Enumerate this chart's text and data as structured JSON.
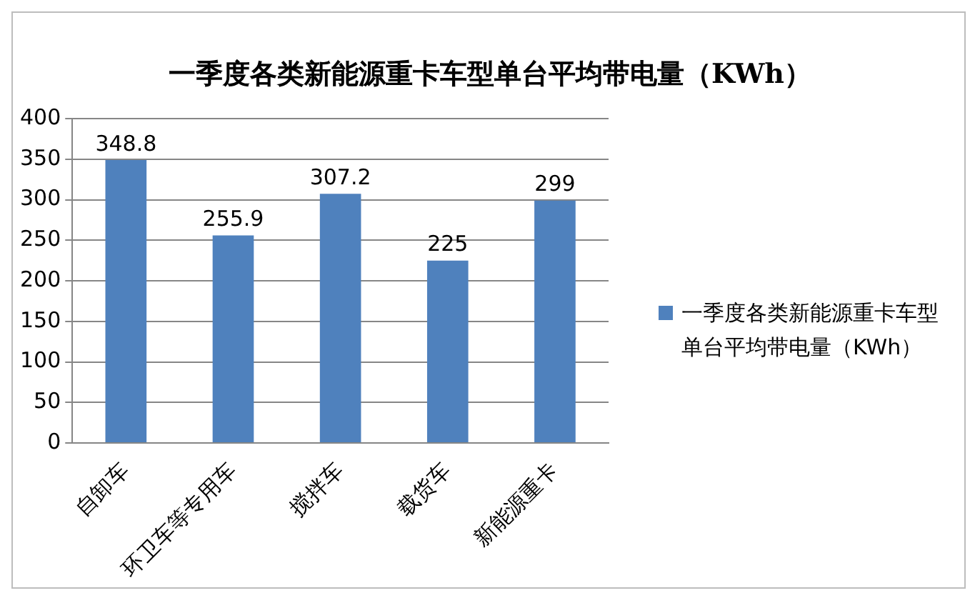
{
  "chart_data": {
    "type": "bar",
    "title": "一季度各类新能源重卡车型单台平均带电量（KWh）",
    "categories": [
      "自卸车",
      "环卫车等专用车",
      "搅拌车",
      "载货车",
      "新能源重卡"
    ],
    "series": [
      {
        "name": "一季度各类新能源重卡车型单台平均带电量（KWh）",
        "color": "#4f81bd",
        "values": [
          348.8,
          255.9,
          307.2,
          225,
          299
        ]
      }
    ],
    "ylim": [
      0,
      400
    ],
    "yticks": [
      0,
      50,
      100,
      150,
      200,
      250,
      300,
      350,
      400
    ],
    "grid": "y",
    "legend": "right",
    "data_labels": true
  }
}
